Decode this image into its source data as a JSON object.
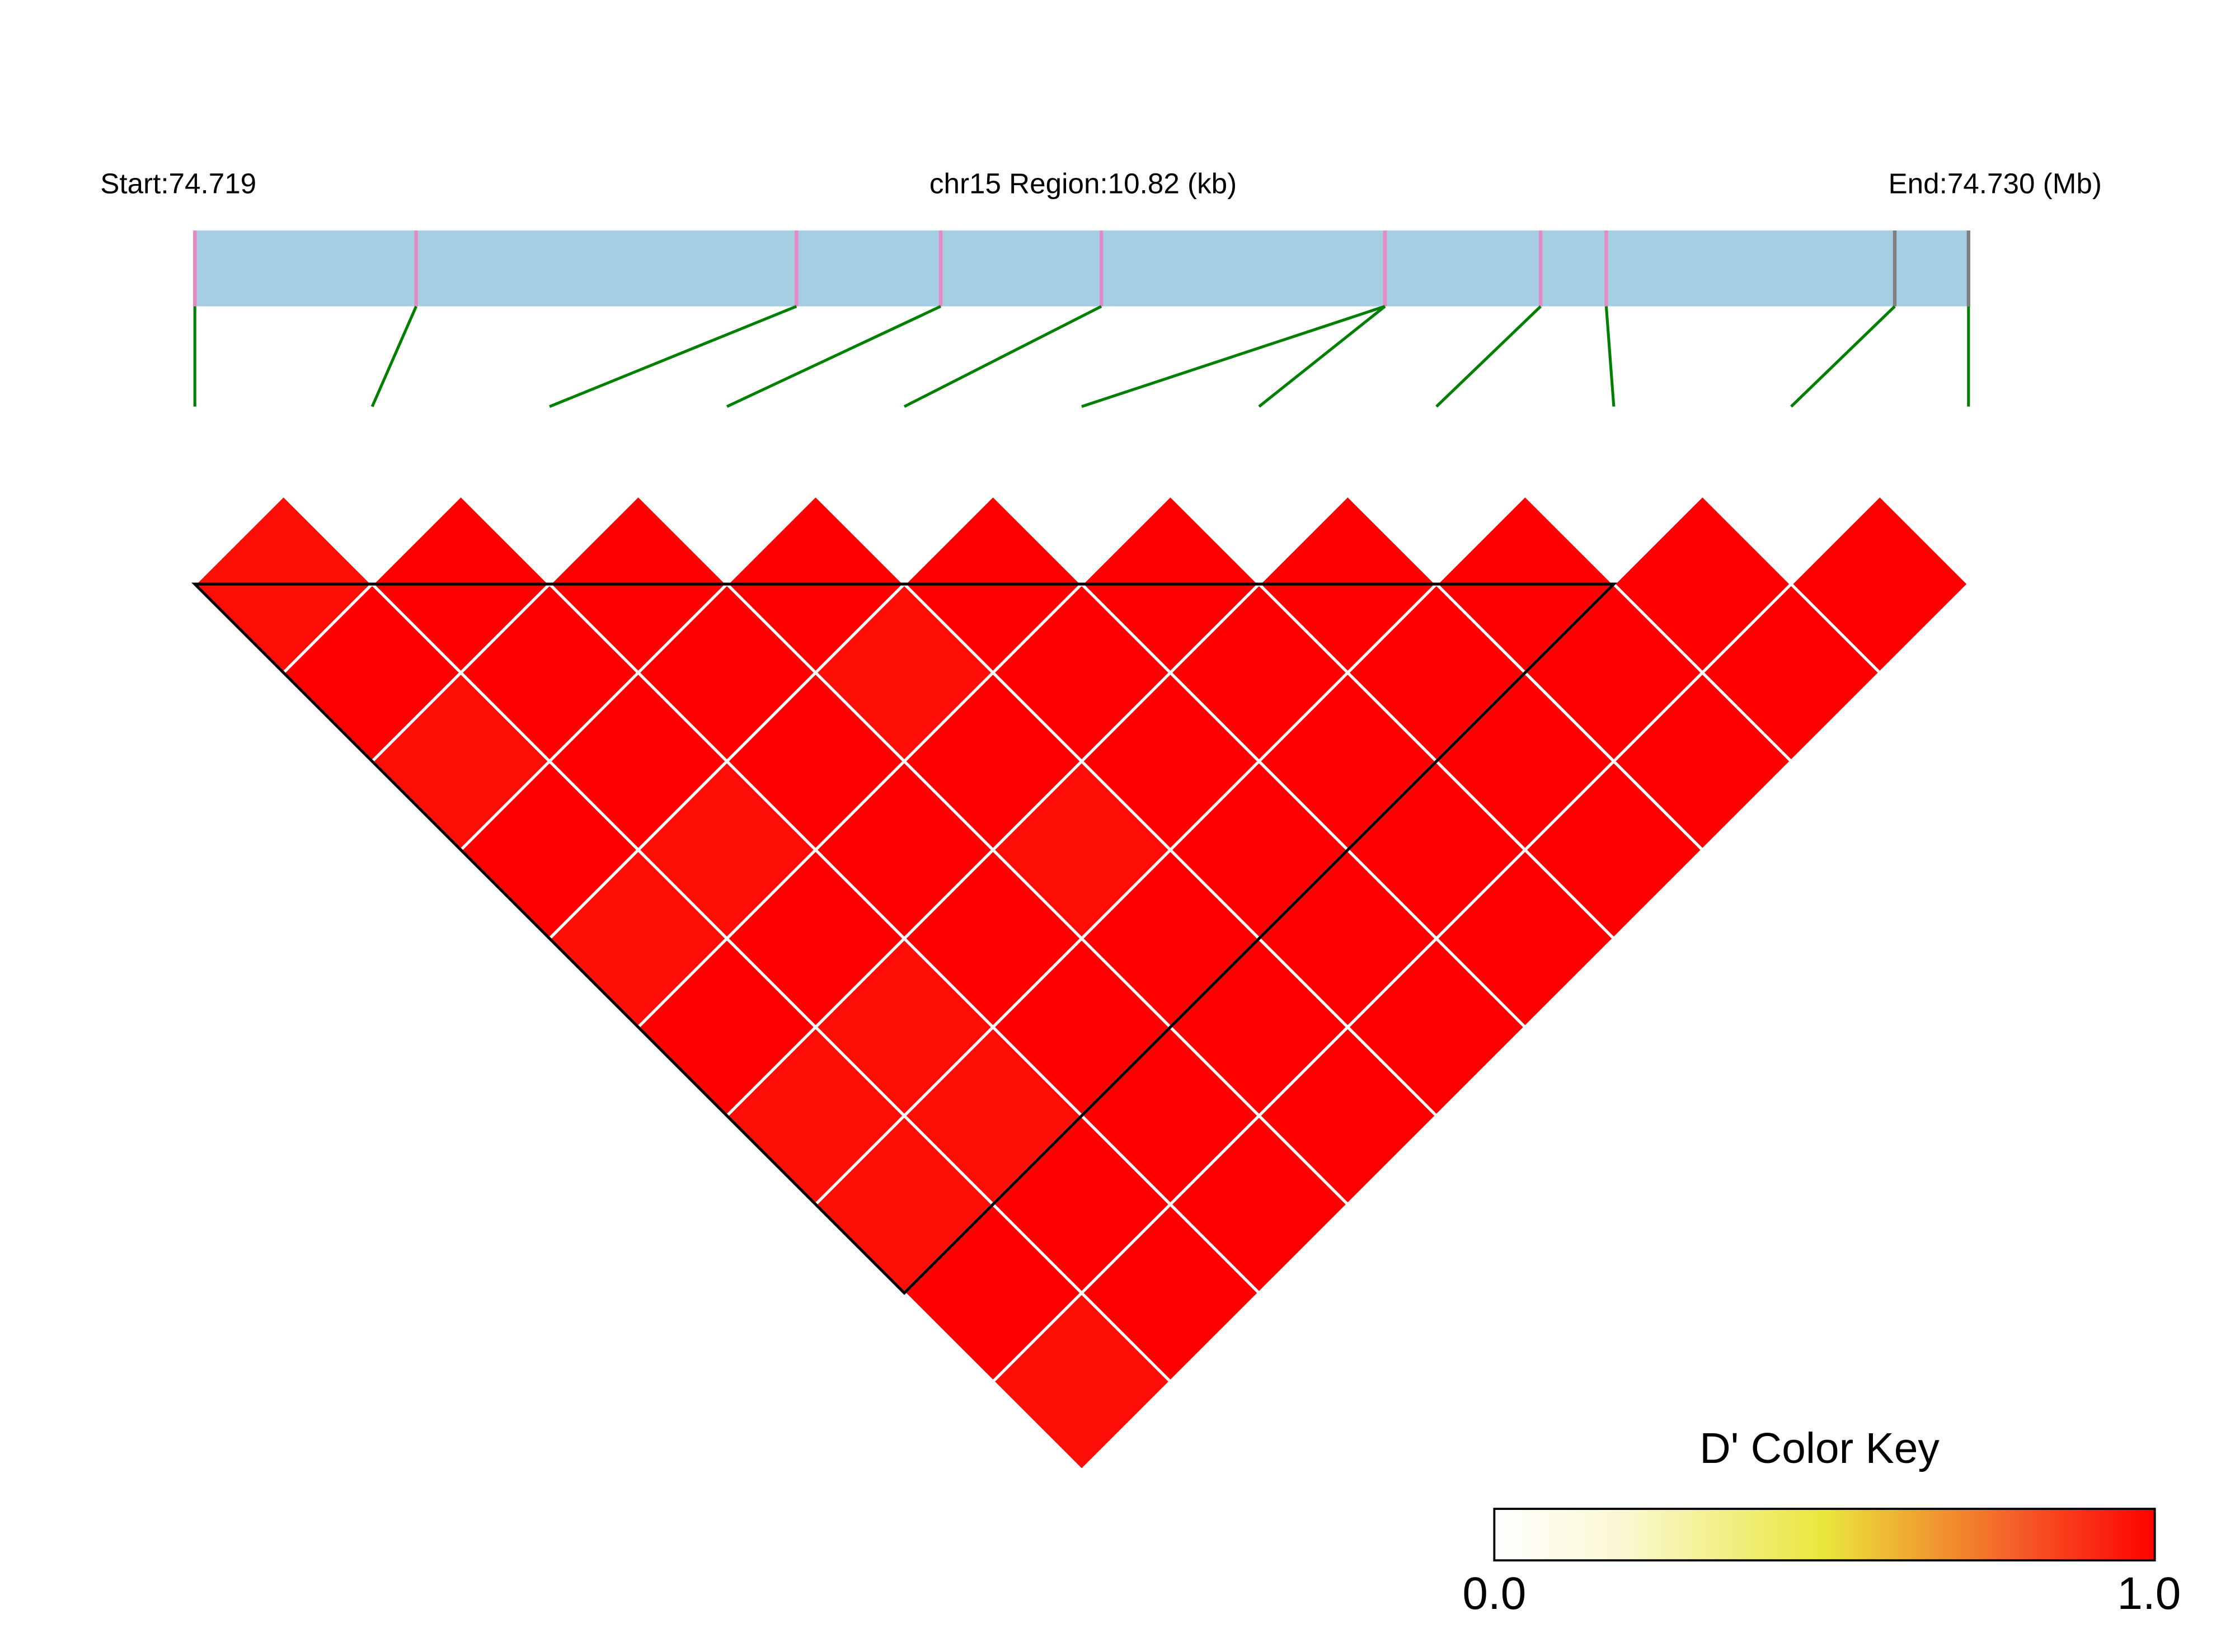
{
  "header": {
    "start_label": "Start:74.719",
    "region_label": "chr15 Region:10.82 (kb)",
    "end_label": "End:74.730 (Mb)"
  },
  "color_key": {
    "title": "D' Color Key",
    "min_label": "0.0",
    "max_label": "1.0",
    "stops": [
      {
        "v": 0.0,
        "c": "#FFFFFF"
      },
      {
        "v": 0.2,
        "c": "#FAF8D0"
      },
      {
        "v": 0.5,
        "c": "#EAE63C"
      },
      {
        "v": 0.65,
        "c": "#F0A030"
      },
      {
        "v": 0.8,
        "c": "#F55A28"
      },
      {
        "v": 1.0,
        "c": "#FF0000"
      }
    ]
  },
  "colors": {
    "ruler_fill": "#A6CEE3",
    "tick_pink": "#E78AC3",
    "tick_gray": "#808080",
    "connector": "#008000",
    "block_outline": "#000000",
    "cell_border": "#FFFFFF"
  },
  "chart_data": {
    "type": "heatmap",
    "chromosome": "chr15",
    "start_mb": 74.719,
    "end_mb": 74.73,
    "region_kb": 10.82,
    "n_snps": 11,
    "snp_positions_kb": [
      0.0,
      1.35,
      3.67,
      4.55,
      5.53,
      7.26,
      7.26,
      8.21,
      8.61,
      10.37,
      10.82
    ],
    "snp_tick_colors": [
      "pink",
      "pink",
      "pink",
      "pink",
      "pink",
      "pink",
      "pink",
      "pink",
      "pink",
      "gray",
      "gray"
    ],
    "dprime_upper": [
      [
        0.97,
        1,
        0.97,
        1,
        0.97,
        1,
        0.97,
        0.97,
        1,
        0.97
      ],
      [
        1,
        1,
        1,
        0.97,
        1,
        0.97,
        0.97,
        1,
        1
      ],
      [
        1,
        1,
        1,
        1,
        1,
        1,
        1,
        1
      ],
      [
        1,
        0.97,
        1,
        0.97,
        1,
        1,
        1
      ],
      [
        1,
        1,
        1,
        1,
        1,
        1
      ],
      [
        1,
        1,
        1,
        1,
        1
      ],
      [
        1,
        1,
        1,
        1
      ],
      [
        1,
        1,
        1
      ],
      [
        1,
        1
      ],
      [
        1
      ]
    ],
    "ld_block": {
      "first_snp": 1,
      "last_snp": 9
    },
    "value_range": [
      0,
      1
    ]
  }
}
